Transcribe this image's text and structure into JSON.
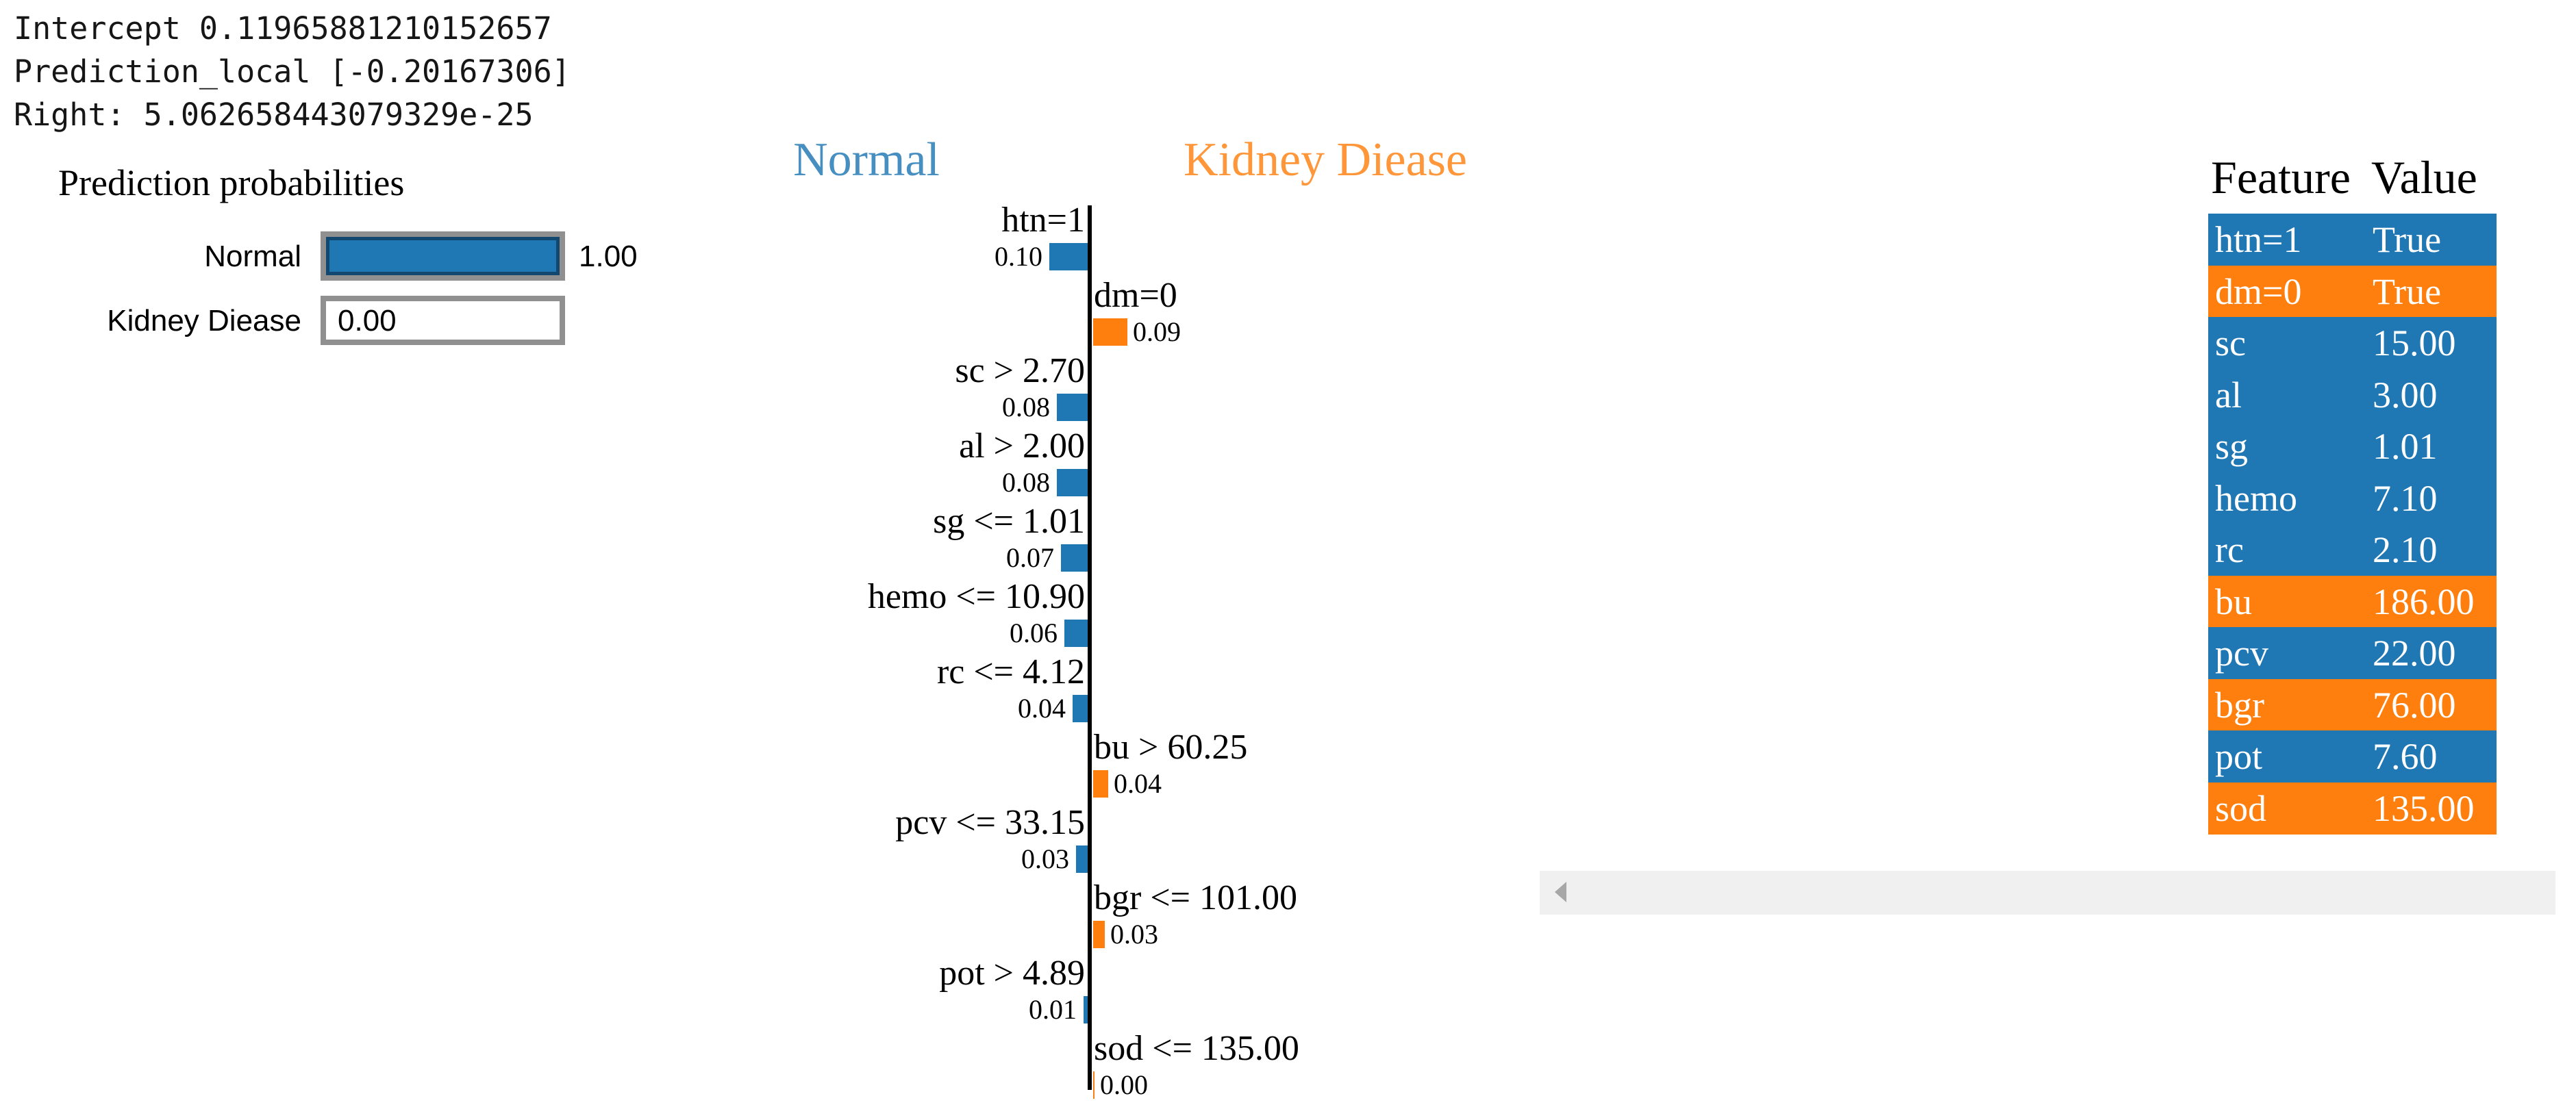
{
  "colors": {
    "blue": "#1f77b4",
    "orange": "#ff7f0e",
    "fill_border": "#12486f",
    "bar_frame": "#909090",
    "axis": "#000000",
    "scroll_track": "#f0f0f0",
    "scroll_arrow": "#a7a7a7"
  },
  "debug_text": {
    "intercept_line": "Intercept 0.11965881210152657",
    "prediction_local_line": "Prediction_local [-0.20167306]",
    "right_line": "Right: 5.062658443079329e-25"
  },
  "prediction_probabilities": {
    "title": "Prediction probabilities",
    "rows": [
      {
        "label": "Normal",
        "value_text": "1.00",
        "fraction": 1.0,
        "color": "blue"
      },
      {
        "label": "Kidney Diease",
        "value_text": "0.00",
        "fraction": 0.0,
        "color": "blue"
      }
    ]
  },
  "chart_data": {
    "type": "bar",
    "orientation": "horizontal-diverging",
    "left_class": {
      "label": "Normal",
      "color": "#1f77b4"
    },
    "right_class": {
      "label": "Kidney Diease",
      "color": "#ff7f0e"
    },
    "xlim": [
      -0.105,
      0.105
    ],
    "grid": false,
    "features": [
      {
        "label": "htn=1",
        "value": 0.1,
        "value_text": "0.10",
        "side": "left"
      },
      {
        "label": "dm=0",
        "value": 0.09,
        "value_text": "0.09",
        "side": "right"
      },
      {
        "label": "sc > 2.70",
        "value": 0.08,
        "value_text": "0.08",
        "side": "left"
      },
      {
        "label": "al > 2.00",
        "value": 0.08,
        "value_text": "0.08",
        "side": "left"
      },
      {
        "label": "sg <= 1.01",
        "value": 0.07,
        "value_text": "0.07",
        "side": "left"
      },
      {
        "label": "hemo <= 10.90",
        "value": 0.06,
        "value_text": "0.06",
        "side": "left"
      },
      {
        "label": "rc <= 4.12",
        "value": 0.04,
        "value_text": "0.04",
        "side": "left"
      },
      {
        "label": "bu > 60.25",
        "value": 0.04,
        "value_text": "0.04",
        "side": "right"
      },
      {
        "label": "pcv <= 33.15",
        "value": 0.03,
        "value_text": "0.03",
        "side": "left"
      },
      {
        "label": "bgr <= 101.00",
        "value": 0.03,
        "value_text": "0.03",
        "side": "right"
      },
      {
        "label": "pot > 4.89",
        "value": 0.01,
        "value_text": "0.01",
        "side": "left"
      },
      {
        "label": "sod <= 135.00",
        "value": 0.0,
        "value_text": "0.00",
        "side": "right"
      }
    ]
  },
  "feature_table": {
    "header": {
      "feature": "Feature",
      "value": "Value"
    },
    "rows": [
      {
        "feature": "htn=1",
        "value": "True",
        "color": "blue"
      },
      {
        "feature": "dm=0",
        "value": "True",
        "color": "orange"
      },
      {
        "feature": "sc",
        "value": "15.00",
        "color": "blue"
      },
      {
        "feature": "al",
        "value": "3.00",
        "color": "blue"
      },
      {
        "feature": "sg",
        "value": "1.01",
        "color": "blue"
      },
      {
        "feature": "hemo",
        "value": "7.10",
        "color": "blue"
      },
      {
        "feature": "rc",
        "value": "2.10",
        "color": "blue"
      },
      {
        "feature": "bu",
        "value": "186.00",
        "color": "orange"
      },
      {
        "feature": "pcv",
        "value": "22.00",
        "color": "blue"
      },
      {
        "feature": "bgr",
        "value": "76.00",
        "color": "orange"
      },
      {
        "feature": "pot",
        "value": "7.60",
        "color": "blue"
      },
      {
        "feature": "sod",
        "value": "135.00",
        "color": "orange"
      }
    ]
  },
  "icons": {
    "scroll_left": "left-arrow"
  }
}
